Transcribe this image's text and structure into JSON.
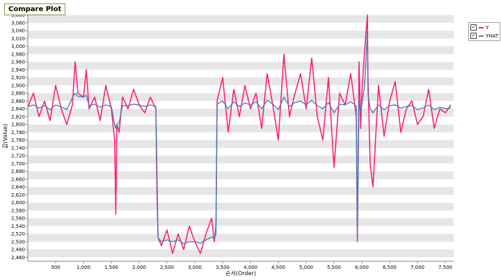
{
  "window": {
    "title": "Compare Plot"
  },
  "chart_data": {
    "type": "line",
    "xlabel": "순서(Order)",
    "ylabel": "값(Value)",
    "xlim": [
      0,
      7650
    ],
    "ylim": [
      2450,
      3090
    ],
    "x_ticks": [
      {
        "v": 500,
        "label": "500"
      },
      {
        "v": 1000,
        "label": "1,000"
      },
      {
        "v": 1500,
        "label": "1,500"
      },
      {
        "v": 2000,
        "label": "2,000"
      },
      {
        "v": 2500,
        "label": "2,500"
      },
      {
        "v": 3000,
        "label": "3,000"
      },
      {
        "v": 3500,
        "label": "3,500"
      },
      {
        "v": 4000,
        "label": "4,000"
      },
      {
        "v": 4500,
        "label": "4,500"
      },
      {
        "v": 5000,
        "label": "5,000"
      },
      {
        "v": 5500,
        "label": "5,500"
      },
      {
        "v": 6000,
        "label": "6,000"
      },
      {
        "v": 6500,
        "label": "6,500"
      },
      {
        "v": 7000,
        "label": "7,000"
      },
      {
        "v": 7500,
        "label": "7,500"
      }
    ],
    "y_ticks": [
      {
        "v": 2460,
        "label": "2,460"
      },
      {
        "v": 2480,
        "label": "2,480"
      },
      {
        "v": 2500,
        "label": "2,500"
      },
      {
        "v": 2520,
        "label": "2,520"
      },
      {
        "v": 2540,
        "label": "2,540"
      },
      {
        "v": 2560,
        "label": "2,560"
      },
      {
        "v": 2580,
        "label": "2,580"
      },
      {
        "v": 2600,
        "label": "2,600"
      },
      {
        "v": 2620,
        "label": "2,620"
      },
      {
        "v": 2640,
        "label": "2,640"
      },
      {
        "v": 2660,
        "label": "2,660"
      },
      {
        "v": 2680,
        "label": "2,680"
      },
      {
        "v": 2700,
        "label": "2,700"
      },
      {
        "v": 2720,
        "label": "2,720"
      },
      {
        "v": 2740,
        "label": "2,740"
      },
      {
        "v": 2760,
        "label": "2,760"
      },
      {
        "v": 2780,
        "label": "2,780"
      },
      {
        "v": 2800,
        "label": "2,800"
      },
      {
        "v": 2820,
        "label": "2,820"
      },
      {
        "v": 2840,
        "label": "2,840"
      },
      {
        "v": 2860,
        "label": "2,860"
      },
      {
        "v": 2880,
        "label": "2,880"
      },
      {
        "v": 2900,
        "label": "2,900"
      },
      {
        "v": 2920,
        "label": "2,920"
      },
      {
        "v": 2940,
        "label": "2,940"
      },
      {
        "v": 2960,
        "label": "2,960"
      },
      {
        "v": 2980,
        "label": "2,980"
      },
      {
        "v": 3000,
        "label": "3,000"
      },
      {
        "v": 3020,
        "label": "3,020"
      },
      {
        "v": 3040,
        "label": "3,040"
      },
      {
        "v": 3060,
        "label": "3,060"
      },
      {
        "v": 3080,
        "label": "3,080"
      }
    ],
    "grid": "horizontal-bands",
    "legend_position": "right",
    "series": [
      {
        "name": "Y",
        "color": "#ff1e78",
        "x": [
          0,
          100,
          200,
          300,
          400,
          500,
          600,
          700,
          800,
          850,
          900,
          1000,
          1050,
          1100,
          1200,
          1300,
          1400,
          1500,
          1560,
          1580,
          1600,
          1640,
          1700,
          1800,
          1900,
          2000,
          2100,
          2200,
          2300,
          2320,
          2340,
          2400,
          2500,
          2600,
          2700,
          2800,
          2900,
          3000,
          3100,
          3200,
          3300,
          3350,
          3380,
          3400,
          3500,
          3600,
          3700,
          3800,
          3900,
          4000,
          4100,
          4200,
          4300,
          4400,
          4500,
          4600,
          4700,
          4800,
          4900,
          5000,
          5100,
          5200,
          5300,
          5400,
          5500,
          5600,
          5700,
          5800,
          5900,
          5920,
          5950,
          5980,
          6000,
          6050,
          6100,
          6110,
          6150,
          6200,
          6300,
          6400,
          6500,
          6600,
          6700,
          6800,
          6900,
          7000,
          7100,
          7200,
          7300,
          7400,
          7500,
          7600
        ],
        "values": [
          2845,
          2880,
          2820,
          2860,
          2810,
          2900,
          2840,
          2800,
          2850,
          2960,
          2880,
          2870,
          2940,
          2840,
          2870,
          2810,
          2900,
          2840,
          2760,
          2570,
          2800,
          2780,
          2870,
          2840,
          2890,
          2850,
          2830,
          2870,
          2840,
          2620,
          2510,
          2490,
          2530,
          2470,
          2520,
          2480,
          2540,
          2500,
          2470,
          2520,
          2560,
          2500,
          2540,
          2860,
          2920,
          2780,
          2890,
          2820,
          2900,
          2840,
          2880,
          2790,
          2930,
          2850,
          2760,
          2980,
          2820,
          2880,
          2930,
          2840,
          2970,
          2820,
          2760,
          2920,
          2690,
          2880,
          2850,
          2930,
          2820,
          2500,
          2960,
          2790,
          2880,
          2990,
          3080,
          2920,
          2700,
          2640,
          2900,
          2770,
          2860,
          2910,
          2780,
          2840,
          2860,
          2800,
          2820,
          2890,
          2790,
          2840,
          2830,
          2850
        ]
      },
      {
        "name": "YHAT",
        "color": "#4a7fb8",
        "x": [
          0,
          100,
          200,
          300,
          400,
          500,
          600,
          700,
          800,
          850,
          900,
          1000,
          1050,
          1100,
          1200,
          1300,
          1400,
          1500,
          1560,
          1580,
          1600,
          1640,
          1700,
          1800,
          1900,
          2000,
          2100,
          2200,
          2300,
          2320,
          2340,
          2400,
          2500,
          2600,
          2700,
          2800,
          2900,
          3000,
          3100,
          3200,
          3300,
          3350,
          3380,
          3400,
          3500,
          3600,
          3700,
          3800,
          3900,
          4000,
          4100,
          4200,
          4300,
          4400,
          4500,
          4600,
          4700,
          4800,
          4900,
          5000,
          5100,
          5200,
          5300,
          5400,
          5500,
          5600,
          5700,
          5800,
          5900,
          5920,
          5950,
          5980,
          6000,
          6050,
          6100,
          6110,
          6150,
          6200,
          6300,
          6400,
          6500,
          6600,
          6700,
          6800,
          6900,
          7000,
          7100,
          7200,
          7300,
          7400,
          7500,
          7600
        ],
        "values": [
          2845,
          2850,
          2842,
          2848,
          2838,
          2850,
          2845,
          2838,
          2868,
          2880,
          2872,
          2870,
          2875,
          2848,
          2852,
          2844,
          2850,
          2846,
          2800,
          2790,
          2800,
          2805,
          2848,
          2848,
          2852,
          2850,
          2846,
          2850,
          2846,
          2680,
          2510,
          2500,
          2505,
          2500,
          2505,
          2495,
          2500,
          2500,
          2496,
          2505,
          2512,
          2508,
          2520,
          2852,
          2860,
          2840,
          2858,
          2846,
          2855,
          2850,
          2858,
          2840,
          2862,
          2852,
          2838,
          2870,
          2846,
          2856,
          2860,
          2850,
          2862,
          2848,
          2840,
          2856,
          2830,
          2852,
          2850,
          2858,
          2848,
          2510,
          2860,
          2830,
          2850,
          2900,
          3040,
          2880,
          2840,
          2830,
          2850,
          2838,
          2848,
          2850,
          2842,
          2846,
          2848,
          2838,
          2842,
          2850,
          2838,
          2844,
          2840,
          2842
        ]
      }
    ]
  }
}
